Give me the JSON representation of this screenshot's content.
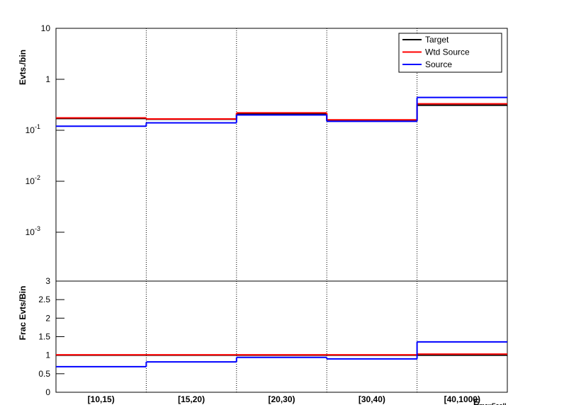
{
  "chart_data": [
    {
      "type": "step",
      "ylabel": "Evts./bin",
      "log_y": true,
      "ylim": [
        0.00011,
        10
      ],
      "yticks": [
        10,
        1,
        {
          "value": 0.1,
          "label": "10",
          "sup": "-1"
        },
        {
          "value": 0.01,
          "label": "10",
          "sup": "-2"
        },
        {
          "value": 0.001,
          "label": "10",
          "sup": "-3"
        }
      ],
      "x_grid": true,
      "legend": "top-right",
      "series": [
        {
          "name": "Target",
          "color": "#000000",
          "values": [
            0.17,
            0.165,
            0.21,
            0.155,
            0.31
          ]
        },
        {
          "name": "Wtd Source",
          "color": "#ff0000",
          "values": [
            0.175,
            0.167,
            0.22,
            0.16,
            0.33
          ]
        },
        {
          "name": "Source",
          "color": "#0000ff",
          "values": [
            0.12,
            0.14,
            0.2,
            0.15,
            0.44
          ]
        }
      ]
    },
    {
      "type": "step",
      "ylabel": "Frac Evts/Bin",
      "xlabel": "E",
      "xlabel_sub": "maxFcell",
      "categories": [
        "[10,15)",
        "[15,20)",
        "[20,30)",
        "[30,40)",
        "[40,1000)"
      ],
      "ylim": [
        0,
        3
      ],
      "yticks": [
        0,
        0.5,
        1,
        1.5,
        2,
        2.5,
        3
      ],
      "x_grid": true,
      "series": [
        {
          "color": "#000000",
          "values": [
            1,
            1,
            1,
            1,
            1
          ]
        },
        {
          "color": "#ff0000",
          "values": [
            1.01,
            1.01,
            1.01,
            1.01,
            1.03
          ]
        },
        {
          "color": "#0000ff",
          "values": [
            0.69,
            0.82,
            0.94,
            0.9,
            1.36
          ]
        }
      ]
    }
  ]
}
